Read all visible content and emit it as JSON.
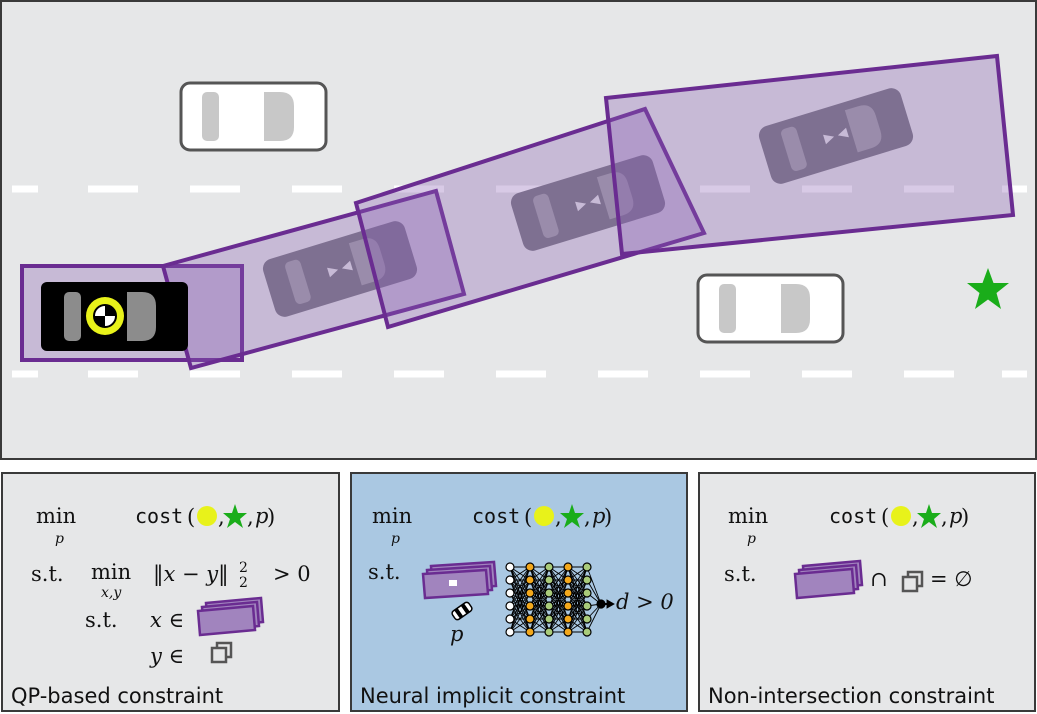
{
  "colors": {
    "road": "#e6e7e8",
    "purple": "#6a2c91",
    "purple_fill": "#a184be",
    "ego_marker": "#e8f21a",
    "goal_star": "#1aad1a",
    "neural_panel_bg": "#aac8e2",
    "grey_panel_bg": "#e6e7e8"
  },
  "icons": {
    "ego_car": "black-car-with-yellow-crash-marker-icon",
    "obstacle_car": "white-car-icon",
    "goal": "green-star-icon",
    "network": "neural-network-icon"
  },
  "panels": [
    {
      "label": "QP-based constraint",
      "objective": {
        "min": "min",
        "min_sub": "p",
        "cost": "cost",
        "cost_arg": "p"
      },
      "constraint": {
        "st": "s.t.",
        "inner_min": "min",
        "inner_min_sub": "x,y",
        "norm_expr": "‖x − y‖",
        "norm_sub": "2",
        "norm_sup": "2",
        "gt": "> 0",
        "inner_st": "s.t.",
        "x_in": "x ∈",
        "y_in": "y ∈"
      }
    },
    {
      "label": "Neural implicit constraint",
      "objective": {
        "min": "min",
        "min_sub": "p",
        "cost": "cost",
        "cost_arg": "p"
      },
      "constraint": {
        "st": "s.t.",
        "param": "p",
        "output": "d > 0"
      }
    },
    {
      "label": "Non-intersection constraint",
      "objective": {
        "min": "min",
        "min_sub": "p",
        "cost": "cost",
        "cost_arg": "p"
      },
      "constraint": {
        "st": "s.t.",
        "cap": "∩",
        "eq_empty": "= ∅"
      }
    }
  ]
}
